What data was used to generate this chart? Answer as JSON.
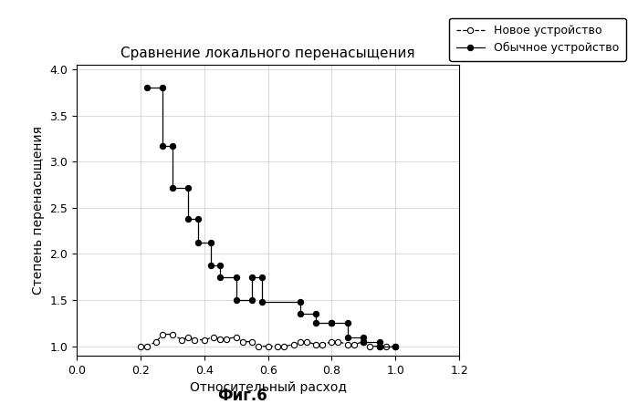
{
  "title": "Сравнение локального перенасыщения",
  "xlabel": "Относительный расход",
  "ylabel": "Степень перенасыщения",
  "fig_label": "Фиг.6",
  "xlim": [
    0,
    1.2
  ],
  "ylim": [
    0.9,
    4.05
  ],
  "yticks": [
    1.0,
    1.5,
    2.0,
    2.5,
    3.0,
    3.5,
    4.0
  ],
  "xticks": [
    0,
    0.2,
    0.4,
    0.6,
    0.8,
    1.0,
    1.2
  ],
  "legend_label_new": "Новое устройство",
  "legend_label_usual": "Обычное устройство",
  "new_device_x": [
    0.2,
    0.22,
    0.25,
    0.27,
    0.3,
    0.33,
    0.35,
    0.37,
    0.4,
    0.43,
    0.45,
    0.47,
    0.5,
    0.52,
    0.55,
    0.57,
    0.6,
    0.63,
    0.65,
    0.68,
    0.7,
    0.72,
    0.75,
    0.77,
    0.8,
    0.82,
    0.85,
    0.87,
    0.9,
    0.92,
    0.95,
    0.97,
    1.0
  ],
  "new_device_y": [
    1.0,
    1.0,
    1.05,
    1.13,
    1.13,
    1.07,
    1.1,
    1.07,
    1.07,
    1.1,
    1.08,
    1.08,
    1.1,
    1.05,
    1.05,
    1.0,
    1.0,
    1.0,
    1.0,
    1.02,
    1.05,
    1.05,
    1.02,
    1.02,
    1.05,
    1.05,
    1.02,
    1.02,
    1.05,
    1.0,
    1.0,
    1.0,
    1.0
  ],
  "usual_device_x": [
    0.22,
    0.27,
    0.27,
    0.3,
    0.3,
    0.35,
    0.35,
    0.38,
    0.38,
    0.42,
    0.42,
    0.45,
    0.45,
    0.5,
    0.5,
    0.55,
    0.55,
    0.58,
    0.58,
    0.7,
    0.7,
    0.75,
    0.75,
    0.8,
    0.8,
    0.85,
    0.85,
    0.9,
    0.9,
    0.95,
    0.95,
    1.0
  ],
  "usual_device_y": [
    3.8,
    3.8,
    3.17,
    3.17,
    2.72,
    2.72,
    2.38,
    2.38,
    2.12,
    2.12,
    1.88,
    1.88,
    1.75,
    1.75,
    1.5,
    1.5,
    1.75,
    1.75,
    1.48,
    1.48,
    1.35,
    1.35,
    1.25,
    1.25,
    1.25,
    1.25,
    1.1,
    1.1,
    1.05,
    1.05,
    1.0,
    1.0
  ],
  "background_color": "#ffffff",
  "line_color_new": "#000000",
  "line_color_usual": "#000000"
}
